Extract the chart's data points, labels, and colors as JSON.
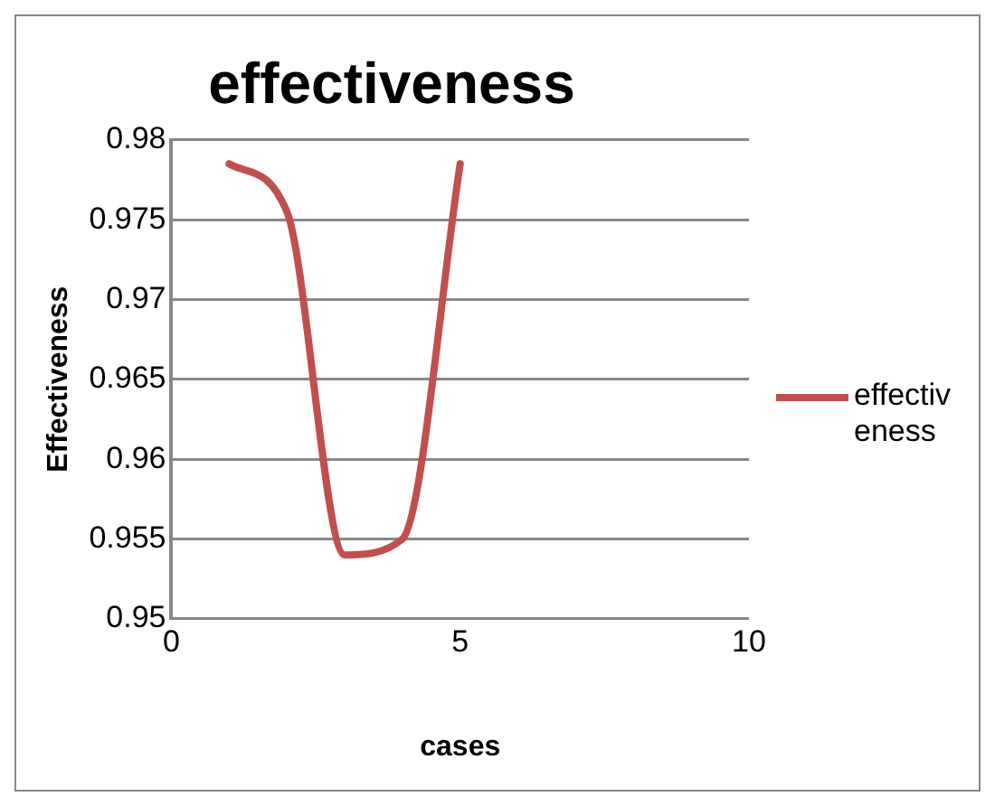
{
  "chart_data": {
    "type": "line",
    "title": "effectiveness",
    "xlabel": "cases",
    "ylabel": "Effectiveness",
    "series": [
      {
        "name": "effectiveness",
        "color": "#c0504d",
        "x": [
          1,
          2,
          3,
          4,
          5
        ],
        "values": [
          0.9785,
          0.9755,
          0.954,
          0.955,
          0.9785
        ]
      }
    ],
    "xlim": [
      0,
      10
    ],
    "xticks": [
      0,
      5,
      10
    ],
    "ylim": [
      0.95,
      0.98
    ],
    "yticks": [
      0.95,
      0.955,
      0.96,
      0.965,
      0.97,
      0.975,
      0.98
    ],
    "grid": "y",
    "legend": "right",
    "marker": "none",
    "line_style": "solid"
  }
}
